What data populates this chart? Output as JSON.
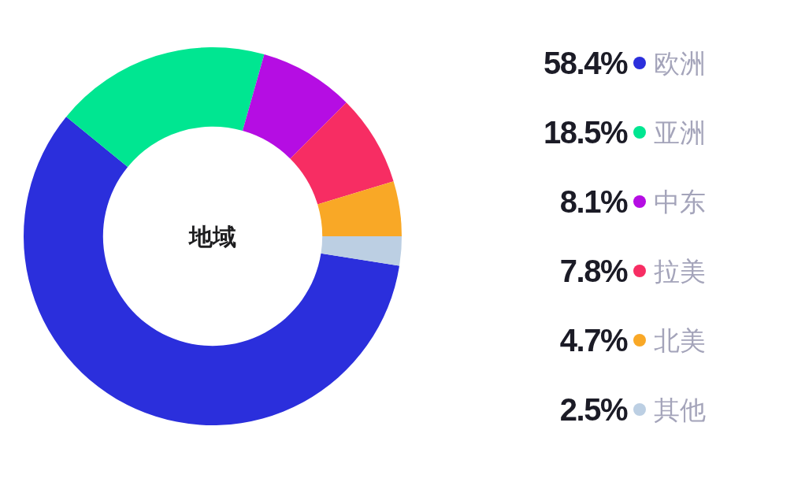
{
  "chart_data": {
    "type": "donut",
    "title": "地域",
    "categories": [
      "欧洲",
      "亚洲",
      "中东",
      "拉美",
      "北美",
      "其他"
    ],
    "values": [
      58.4,
      18.5,
      8.1,
      7.8,
      4.7,
      2.5
    ],
    "value_labels": [
      "58.4%",
      "18.5%",
      "8.1%",
      "7.8%",
      "4.7%",
      "2.5%"
    ],
    "colors": [
      "#2b2fdc",
      "#00e691",
      "#b50de3",
      "#f72d63",
      "#f9a826",
      "#bccfe3"
    ],
    "legend": "right"
  }
}
